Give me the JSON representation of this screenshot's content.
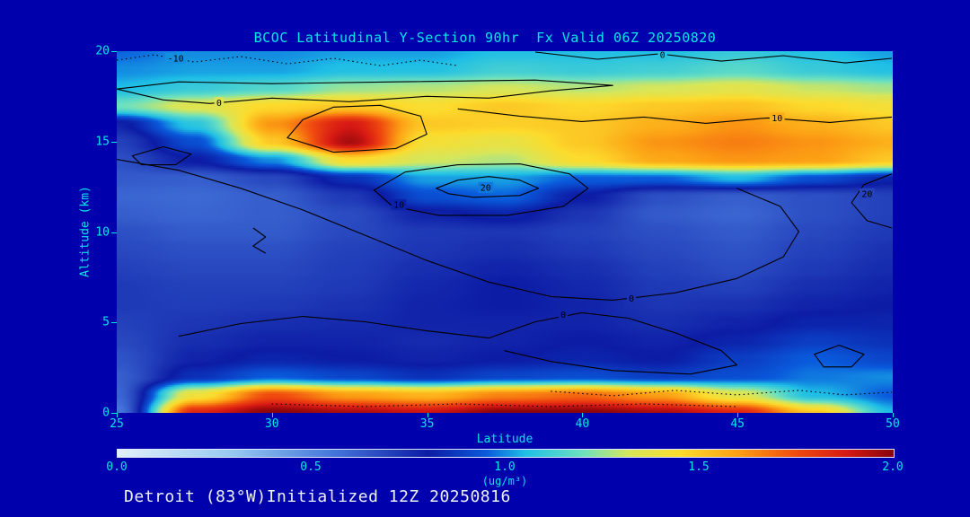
{
  "colors": {
    "background": "#0000ac",
    "axis_text": "#00e8e8",
    "footer_text": "#eef0fa",
    "contour_line": "#000000",
    "colorbar_border": "#dfe8ff"
  },
  "footer": {
    "text": "Detroit (83°W)Initialized 12Z 20250816"
  },
  "chart_data": {
    "type": "heatmap",
    "title": "BCOC Latitudinal Y-Section 90hr  Fx Valid 06Z 20250820",
    "xlabel": "Latitude",
    "ylabel": "Altitude (km)",
    "xlim": [
      25,
      50
    ],
    "ylim": [
      0,
      20
    ],
    "xticks": [
      25,
      30,
      35,
      40,
      45,
      50
    ],
    "yticks": [
      0,
      5,
      10,
      15,
      20
    ],
    "x": [
      25,
      27.5,
      30,
      32.5,
      35,
      37.5,
      40,
      42.5,
      45,
      47.5,
      50
    ],
    "y": [
      0,
      1,
      2,
      3,
      4,
      5,
      6,
      7,
      8,
      9,
      10,
      11,
      12,
      13,
      14,
      15,
      16,
      17,
      18,
      19,
      20
    ],
    "values": [
      [
        0.55,
        1.85,
        2.0,
        1.95,
        1.9,
        2.0,
        2.0,
        1.95,
        1.85,
        1.5,
        1.05
      ],
      [
        0.6,
        1.4,
        1.75,
        1.6,
        1.55,
        1.65,
        1.7,
        1.6,
        1.35,
        1.05,
        0.95
      ],
      [
        0.62,
        0.85,
        0.95,
        0.9,
        0.85,
        0.9,
        0.92,
        0.88,
        0.92,
        0.98,
        1.0
      ],
      [
        0.65,
        0.78,
        0.82,
        0.8,
        0.78,
        0.8,
        0.82,
        0.8,
        0.88,
        0.95,
        0.9
      ],
      [
        0.68,
        0.75,
        0.78,
        0.78,
        0.76,
        0.78,
        0.8,
        0.78,
        0.82,
        0.88,
        0.85
      ],
      [
        0.7,
        0.73,
        0.75,
        0.76,
        0.78,
        0.78,
        0.78,
        0.75,
        0.78,
        0.82,
        0.82
      ],
      [
        0.72,
        0.71,
        0.72,
        0.74,
        0.78,
        0.8,
        0.78,
        0.73,
        0.74,
        0.78,
        0.8
      ],
      [
        0.72,
        0.7,
        0.7,
        0.72,
        0.77,
        0.8,
        0.77,
        0.72,
        0.7,
        0.75,
        0.78
      ],
      [
        0.7,
        0.68,
        0.68,
        0.71,
        0.75,
        0.78,
        0.75,
        0.7,
        0.67,
        0.72,
        0.76
      ],
      [
        0.68,
        0.66,
        0.66,
        0.7,
        0.73,
        0.75,
        0.72,
        0.68,
        0.65,
        0.7,
        0.74
      ],
      [
        0.66,
        0.63,
        0.63,
        0.68,
        0.72,
        0.73,
        0.7,
        0.66,
        0.63,
        0.68,
        0.72
      ],
      [
        0.62,
        0.6,
        0.62,
        0.67,
        0.78,
        0.82,
        0.73,
        0.63,
        0.6,
        0.66,
        0.7
      ],
      [
        0.6,
        0.59,
        0.62,
        0.72,
        0.92,
        0.96,
        0.8,
        0.66,
        0.62,
        0.66,
        0.7
      ],
      [
        0.63,
        0.62,
        0.68,
        0.85,
        1.02,
        1.02,
        0.95,
        0.95,
        1.05,
        0.92,
        0.82
      ],
      [
        0.66,
        0.8,
        1.0,
        1.45,
        1.32,
        1.28,
        1.45,
        1.58,
        1.62,
        1.6,
        1.5
      ],
      [
        0.7,
        0.92,
        1.5,
        1.95,
        1.42,
        1.38,
        1.5,
        1.62,
        1.66,
        1.62,
        1.56
      ],
      [
        0.78,
        1.08,
        1.62,
        1.88,
        1.5,
        1.48,
        1.5,
        1.56,
        1.62,
        1.56,
        1.5
      ],
      [
        1.2,
        1.35,
        1.46,
        1.5,
        1.44,
        1.5,
        1.46,
        1.5,
        1.52,
        1.46,
        1.42
      ],
      [
        1.05,
        1.1,
        1.15,
        1.25,
        1.28,
        1.32,
        1.28,
        1.32,
        1.36,
        1.3,
        1.26
      ],
      [
        1.0,
        1.02,
        1.02,
        1.06,
        1.06,
        1.12,
        1.1,
        1.12,
        1.16,
        1.1,
        1.06
      ],
      [
        0.96,
        1.0,
        1.0,
        1.02,
        1.02,
        1.06,
        1.06,
        1.06,
        1.1,
        1.06,
        1.02
      ]
    ],
    "colormap": [
      {
        "v": 0.0,
        "c": "#e1f0fa"
      },
      {
        "v": 0.3,
        "c": "#96c8f0"
      },
      {
        "v": 0.55,
        "c": "#4678dc"
      },
      {
        "v": 0.8,
        "c": "#0c1ca5"
      },
      {
        "v": 0.95,
        "c": "#0a5adc"
      },
      {
        "v": 1.05,
        "c": "#1ebee6"
      },
      {
        "v": 1.2,
        "c": "#6ee1be"
      },
      {
        "v": 1.32,
        "c": "#d7e65a"
      },
      {
        "v": 1.45,
        "c": "#fcdc2d"
      },
      {
        "v": 1.6,
        "c": "#fca014"
      },
      {
        "v": 1.75,
        "c": "#f04b0f"
      },
      {
        "v": 1.88,
        "c": "#d71914"
      },
      {
        "v": 2.0,
        "c": "#87050a"
      }
    ],
    "colorbar": {
      "min": 0.0,
      "max": 2.0,
      "ticks": [
        "0.0",
        "0.5",
        "1.0",
        "1.5",
        "2.0"
      ],
      "tick_values": [
        0.0,
        0.5,
        1.0,
        1.5,
        2.0
      ],
      "unit": "(ug/m³)"
    },
    "contours": [
      {
        "label": "-10",
        "style": "dotted",
        "pts": [
          [
            25,
            19.5
          ],
          [
            26.2,
            19.8
          ],
          [
            27.5,
            19.4
          ],
          [
            29,
            19.7
          ],
          [
            30.5,
            19.3
          ],
          [
            32,
            19.6
          ],
          [
            33.5,
            19.2
          ],
          [
            34.8,
            19.5
          ],
          [
            36,
            19.2
          ]
        ],
        "labelAt": [
          26.9,
          19.6
        ]
      },
      {
        "label": "0",
        "style": "solid",
        "closed": true,
        "pts": [
          [
            25,
            17.9
          ],
          [
            26.5,
            17.3
          ],
          [
            28,
            17.1
          ],
          [
            30,
            17.4
          ],
          [
            32.5,
            17.2
          ],
          [
            35,
            17.5
          ],
          [
            37,
            17.4
          ],
          [
            39,
            17.8
          ],
          [
            41,
            18.1
          ],
          [
            38.5,
            18.4
          ],
          [
            34,
            18.3
          ],
          [
            30,
            18.2
          ],
          [
            27,
            18.3
          ]
        ],
        "labelAt": [
          28.3,
          17.15
        ]
      },
      {
        "label": "0",
        "style": "solid",
        "pts": [
          [
            38.5,
            19.95
          ],
          [
            40.5,
            19.55
          ],
          [
            42.5,
            19.85
          ],
          [
            44.5,
            19.45
          ],
          [
            46.5,
            19.75
          ],
          [
            48.5,
            19.35
          ],
          [
            50,
            19.6
          ]
        ],
        "labelAt": [
          42.6,
          19.8
        ]
      },
      {
        "label": "10",
        "style": "solid",
        "pts": [
          [
            36,
            16.8
          ],
          [
            38,
            16.4
          ],
          [
            40,
            16.1
          ],
          [
            42,
            16.35
          ],
          [
            44,
            16.0
          ],
          [
            46,
            16.3
          ],
          [
            48,
            16.05
          ],
          [
            50,
            16.35
          ]
        ],
        "labelAt": [
          46.3,
          16.3
        ]
      },
      {
        "label": "20",
        "style": "solid",
        "closed": true,
        "pts": [
          [
            35.3,
            12.4
          ],
          [
            36,
            12.85
          ],
          [
            37,
            13.05
          ],
          [
            38,
            12.85
          ],
          [
            38.6,
            12.4
          ],
          [
            38,
            12.0
          ],
          [
            36.5,
            11.9
          ],
          [
            35.7,
            12.1
          ]
        ],
        "labelAt": [
          36.9,
          12.45
        ]
      },
      {
        "label": "10",
        "style": "solid",
        "closed": true,
        "pts": [
          [
            33.3,
            12.3
          ],
          [
            34.3,
            13.3
          ],
          [
            36,
            13.7
          ],
          [
            38,
            13.75
          ],
          [
            39.6,
            13.2
          ],
          [
            40.2,
            12.4
          ],
          [
            39.4,
            11.4
          ],
          [
            37.6,
            10.9
          ],
          [
            35.4,
            10.9
          ],
          [
            33.9,
            11.4
          ]
        ],
        "labelAt": [
          34.1,
          11.5
        ]
      },
      {
        "label": "0",
        "style": "solid",
        "pts": [
          [
            25,
            14.0
          ],
          [
            27,
            13.4
          ],
          [
            29,
            12.4
          ],
          [
            31,
            11.2
          ],
          [
            33,
            9.8
          ],
          [
            35,
            8.4
          ],
          [
            37,
            7.2
          ],
          [
            39,
            6.4
          ],
          [
            41,
            6.2
          ],
          [
            43,
            6.6
          ],
          [
            45,
            7.4
          ],
          [
            46.5,
            8.6
          ],
          [
            47,
            10.0
          ],
          [
            46.4,
            11.4
          ],
          [
            45,
            12.4
          ]
        ],
        "labelAt": [
          41.6,
          6.3
        ]
      },
      {
        "label": "0",
        "style": "solid",
        "pts": [
          [
            27,
            4.2
          ],
          [
            29,
            4.9
          ],
          [
            31,
            5.3
          ],
          [
            33,
            5.0
          ],
          [
            35,
            4.5
          ],
          [
            37,
            4.1
          ],
          [
            38.5,
            5.0
          ],
          [
            40,
            5.5
          ],
          [
            41.5,
            5.2
          ],
          [
            43,
            4.4
          ],
          [
            44.5,
            3.4
          ],
          [
            45,
            2.6
          ],
          [
            43.5,
            2.1
          ],
          [
            41,
            2.3
          ],
          [
            39,
            2.8
          ],
          [
            37.5,
            3.4
          ]
        ],
        "labelAt": [
          39.4,
          5.4
        ]
      },
      {
        "style": "dotted",
        "pts": [
          [
            39,
            1.15
          ],
          [
            41,
            0.9
          ],
          [
            43,
            1.2
          ],
          [
            45,
            0.95
          ],
          [
            47,
            1.2
          ],
          [
            48.5,
            0.95
          ],
          [
            50,
            1.1
          ]
        ]
      },
      {
        "style": "dotted",
        "pts": [
          [
            30,
            0.45
          ],
          [
            33,
            0.3
          ],
          [
            36,
            0.45
          ],
          [
            39,
            0.3
          ],
          [
            42,
            0.45
          ],
          [
            45,
            0.3
          ]
        ]
      },
      {
        "style": "solid",
        "closed": true,
        "pts": [
          [
            25.5,
            14.2
          ],
          [
            26.5,
            14.7
          ],
          [
            27.4,
            14.3
          ],
          [
            26.9,
            13.7
          ],
          [
            25.8,
            13.7
          ]
        ]
      },
      {
        "style": "solid",
        "pts": [
          [
            29.4,
            10.2
          ],
          [
            29.8,
            9.7
          ],
          [
            29.4,
            9.2
          ],
          [
            29.8,
            8.8
          ]
        ]
      },
      {
        "label": "20",
        "style": "solid",
        "pts": [
          [
            50,
            13.2
          ],
          [
            49.1,
            12.6
          ],
          [
            48.7,
            11.6
          ],
          [
            49.2,
            10.6
          ],
          [
            50,
            10.2
          ]
        ],
        "labelAt": [
          49.2,
          12.1
        ]
      },
      {
        "style": "solid",
        "closed": true,
        "pts": [
          [
            47.5,
            3.2
          ],
          [
            48.3,
            3.7
          ],
          [
            49.1,
            3.2
          ],
          [
            48.7,
            2.5
          ],
          [
            47.8,
            2.5
          ]
        ]
      },
      {
        "style": "solid",
        "closed": true,
        "pts": [
          [
            30.5,
            15.2
          ],
          [
            31,
            16.2
          ],
          [
            32,
            16.9
          ],
          [
            33.5,
            17.0
          ],
          [
            34.8,
            16.4
          ],
          [
            35,
            15.4
          ],
          [
            34,
            14.6
          ],
          [
            32,
            14.4
          ]
        ]
      }
    ]
  }
}
